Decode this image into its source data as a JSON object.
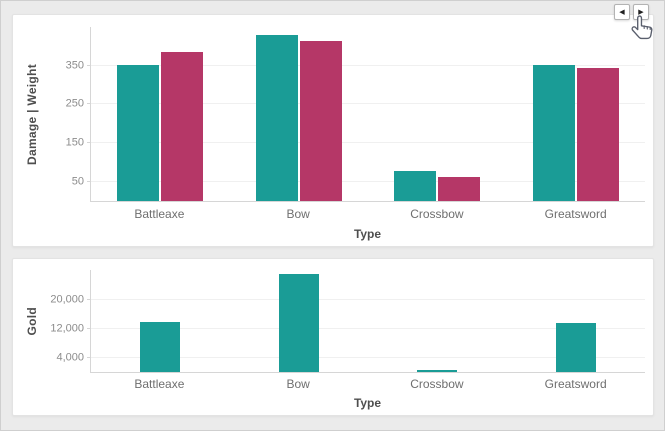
{
  "page": {
    "background_color": "#ebebeb",
    "card_color": "#ffffff"
  },
  "pager": {
    "prev_glyph": "◀",
    "next_glyph": "▶"
  },
  "colors": {
    "teal": "#1A9C96",
    "crimson": "#B53767",
    "axis_line": "#d6d6d6",
    "gridline": "#f0f0f0",
    "tick_text": "#8c8c8c",
    "axis_title_text": "#4e4e4e"
  },
  "chart_data": [
    {
      "type": "bar",
      "title": "",
      "categories": [
        "Battleaxe",
        "Bow",
        "Crossbow",
        "Greatsword"
      ],
      "series": [
        {
          "name": "Damage",
          "color": "#1A9C96",
          "values": [
            352,
            430,
            78,
            352
          ]
        },
        {
          "name": "Weight",
          "color": "#B53767",
          "values": [
            386,
            415,
            63,
            344
          ]
        }
      ],
      "xlabel": "Type",
      "ylabel": "Damage | Weight",
      "yticks": [
        50,
        150,
        250,
        350
      ],
      "ytick_labels": [
        "50",
        "150",
        "250",
        "350"
      ],
      "ylim": [
        0,
        450
      ],
      "grid": true,
      "legend": "none"
    },
    {
      "type": "bar",
      "title": "",
      "categories": [
        "Battleaxe",
        "Bow",
        "Crossbow",
        "Greatsword"
      ],
      "series": [
        {
          "name": "Gold",
          "color": "#1A9C96",
          "values": [
            14000,
            27500,
            700,
            13800
          ]
        }
      ],
      "xlabel": "Type",
      "ylabel": "Gold",
      "yticks": [
        4000,
        12000,
        20000
      ],
      "ytick_labels": [
        "4,000",
        "12,000",
        "20,000"
      ],
      "ylim": [
        0,
        28500
      ],
      "grid": true,
      "legend": "none"
    }
  ]
}
